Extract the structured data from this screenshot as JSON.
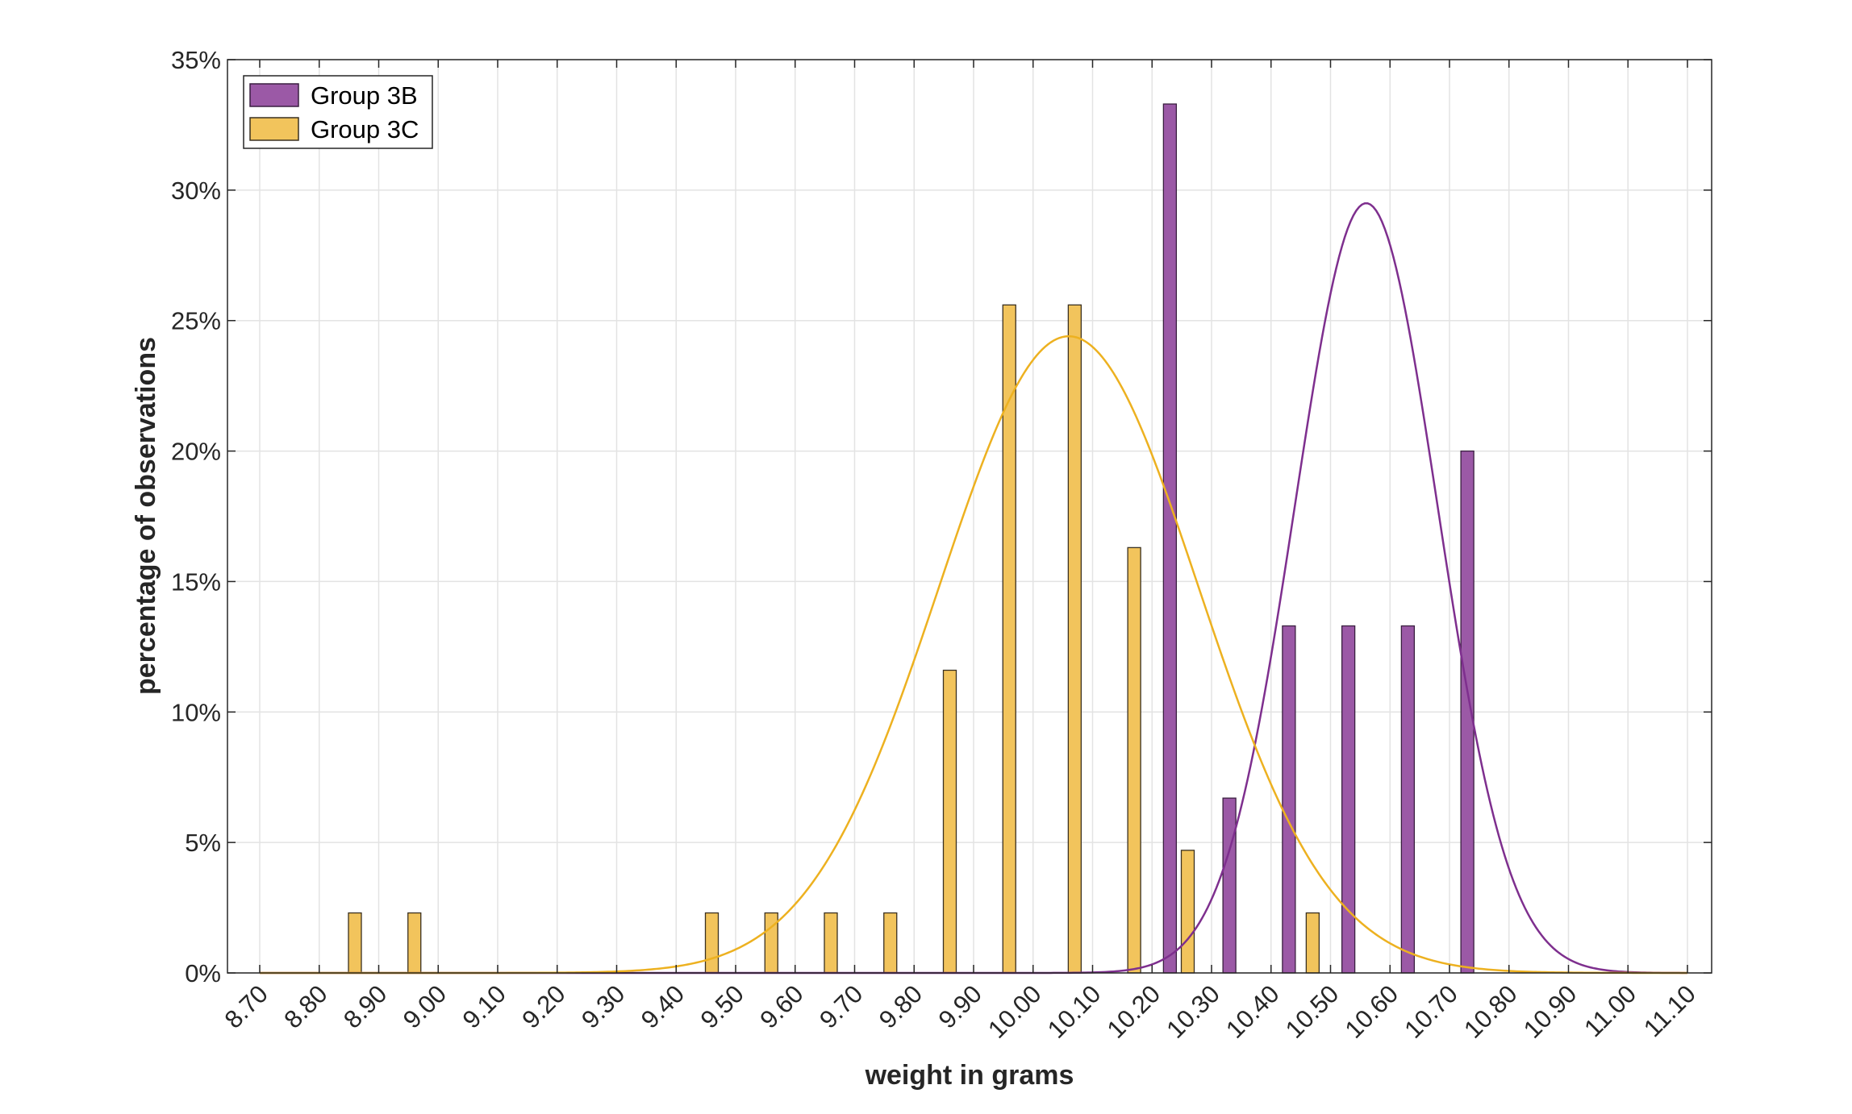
{
  "chart_data": {
    "type": "bar",
    "title": "",
    "xlabel": "weight in grams",
    "ylabel": "percentage of observations",
    "xlim": [
      8.68,
      11.13
    ],
    "ylim": [
      0,
      35
    ],
    "x_ticks": [
      "8.70",
      "8.80",
      "8.90",
      "9.00",
      "9.10",
      "9.20",
      "9.30",
      "9.40",
      "9.50",
      "9.60",
      "9.70",
      "9.80",
      "9.90",
      "10.00",
      "10.10",
      "10.20",
      "10.30",
      "10.40",
      "10.50",
      "10.60",
      "10.70",
      "10.80",
      "10.90",
      "11.00",
      "11.10"
    ],
    "x_tick_values": [
      8.7,
      8.8,
      8.9,
      9.0,
      9.1,
      9.2,
      9.3,
      9.4,
      9.5,
      9.6,
      9.7,
      9.8,
      9.9,
      10.0,
      10.1,
      10.2,
      10.3,
      10.4,
      10.5,
      10.6,
      10.7,
      10.8,
      10.9,
      11.0,
      11.1
    ],
    "y_ticks": [
      "0%",
      "5%",
      "10%",
      "15%",
      "20%",
      "25%",
      "30%",
      "35%"
    ],
    "y_tick_values": [
      0,
      5,
      10,
      15,
      20,
      25,
      30,
      35
    ],
    "grid": true,
    "legend_position": "top-left",
    "series": [
      {
        "name": "Group 3B",
        "color": "#9b59a6",
        "edge_color": "#3a1f40",
        "line_color": "#7e2f8e",
        "bars": [
          {
            "x": 10.23,
            "y": 33.3
          },
          {
            "x": 10.33,
            "y": 6.7
          },
          {
            "x": 10.43,
            "y": 13.3
          },
          {
            "x": 10.53,
            "y": 13.3
          },
          {
            "x": 10.63,
            "y": 13.3
          },
          {
            "x": 10.73,
            "y": 20.0
          }
        ],
        "fit": {
          "type": "normal",
          "peak": 29.5,
          "mean": 10.56,
          "sd": 0.12
        }
      },
      {
        "name": "Group 3C",
        "color": "#f2c45c",
        "edge_color": "#3a3020",
        "line_color": "#edb120",
        "bars": [
          {
            "x": 8.86,
            "y": 2.3
          },
          {
            "x": 8.96,
            "y": 2.3
          },
          {
            "x": 9.46,
            "y": 2.3
          },
          {
            "x": 9.56,
            "y": 2.3
          },
          {
            "x": 9.66,
            "y": 2.3
          },
          {
            "x": 9.76,
            "y": 2.3
          },
          {
            "x": 9.86,
            "y": 11.6
          },
          {
            "x": 9.96,
            "y": 25.6
          },
          {
            "x": 10.07,
            "y": 25.6
          },
          {
            "x": 10.17,
            "y": 16.3
          },
          {
            "x": 10.26,
            "y": 4.7
          },
          {
            "x": 10.47,
            "y": 2.3
          }
        ],
        "fit": {
          "type": "normal",
          "peak": 24.4,
          "mean": 10.06,
          "sd": 0.218
        }
      }
    ]
  }
}
